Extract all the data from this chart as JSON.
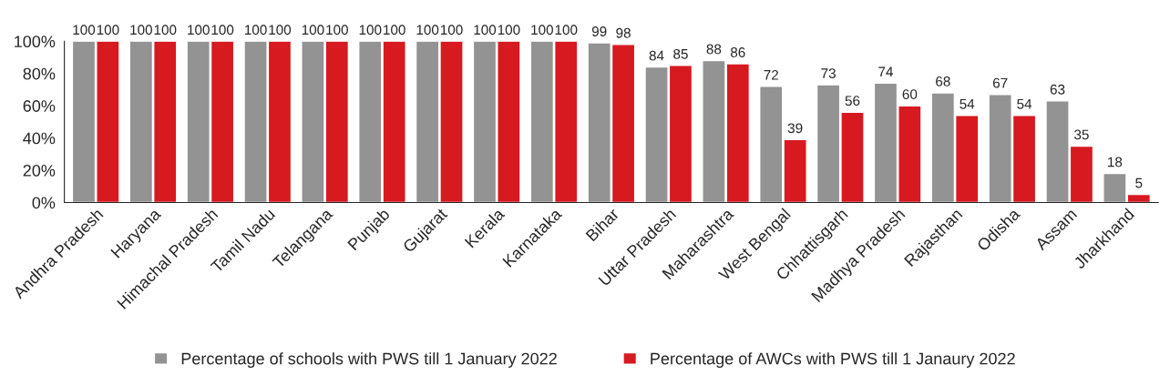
{
  "chart_data": {
    "type": "bar",
    "categories": [
      "Andhra Pradesh",
      "Haryana",
      "Himachal Pradesh",
      "Tamil Nadu",
      "Telangana",
      "Punjab",
      "Gujarat",
      "Kerala",
      "Karnataka",
      "Bihar",
      "Uttar Pradesh",
      "Maharashtra",
      "West Bengal",
      "Chhattisgarh",
      "Madhya Pradesh",
      "Rajasthan",
      "Odisha",
      "Assam",
      "Jharkhand"
    ],
    "series": [
      {
        "name": "Percentage of schools with PWS till 1 January 2022",
        "color": "#939393",
        "values": [
          100,
          100,
          100,
          100,
          100,
          100,
          100,
          100,
          100,
          99,
          84,
          88,
          72,
          73,
          74,
          68,
          67,
          63,
          18
        ]
      },
      {
        "name": "Percentage of AWCs with PWS till 1 Janaury 2022",
        "color": "#d71920",
        "values": [
          100,
          100,
          100,
          100,
          100,
          100,
          100,
          100,
          100,
          98,
          85,
          86,
          39,
          56,
          60,
          54,
          54,
          35,
          5
        ]
      }
    ],
    "ylim": [
      0,
      100
    ],
    "yticks": [
      {
        "value": 0,
        "label": "0%"
      },
      {
        "value": 20,
        "label": "20%"
      },
      {
        "value": 40,
        "label": "40%"
      },
      {
        "value": 60,
        "label": "60%"
      },
      {
        "value": 80,
        "label": "80%"
      },
      {
        "value": 100,
        "label": "100%"
      }
    ],
    "data_labels": true,
    "grid": false,
    "legend": "bottom"
  }
}
